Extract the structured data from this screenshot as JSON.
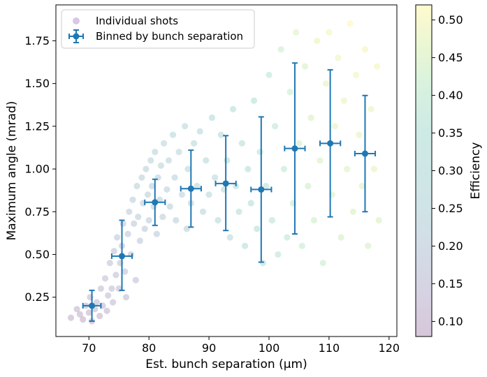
{
  "chart_data": [
    {
      "type": "scatter",
      "xlabel": "Est. bunch separation (µm)",
      "ylabel": "Maximum angle (mrad)",
      "xlim": [
        64.5,
        121.3
      ],
      "ylim": [
        0.02,
        1.96
      ],
      "xticks": [
        70,
        80,
        90,
        100,
        110,
        120
      ],
      "yticks": [
        0.25,
        0.5,
        0.75,
        1.0,
        1.25,
        1.5,
        1.75
      ],
      "ytick_labels": [
        "0.25",
        "0.50",
        "0.75",
        "1.00",
        "1.25",
        "1.50",
        "1.75"
      ],
      "grid": false,
      "legend": {
        "position": "top-left",
        "entries": [
          "Individual shots",
          "Binned by bunch separation"
        ]
      },
      "colors": {
        "binned": "#1f77b4",
        "axis": "#000000"
      },
      "series": [
        {
          "name": "Individual shots",
          "style": "scatter, viridis colormap by efficiency, alpha 0.2",
          "points": [
            [
              67.0,
              0.13,
              0.1
            ],
            [
              68.0,
              0.18,
              0.11
            ],
            [
              68.5,
              0.15,
              0.1
            ],
            [
              69.0,
              0.12,
              0.09
            ],
            [
              69.5,
              0.2,
              0.12
            ],
            [
              70.0,
              0.16,
              0.11
            ],
            [
              70.2,
              0.25,
              0.13
            ],
            [
              70.5,
              0.11,
              0.09
            ],
            [
              71.0,
              0.18,
              0.12
            ],
            [
              71.3,
              0.22,
              0.13
            ],
            [
              71.8,
              0.14,
              0.1
            ],
            [
              72.0,
              0.3,
              0.14
            ],
            [
              72.3,
              0.2,
              0.12
            ],
            [
              72.7,
              0.36,
              0.15
            ],
            [
              73.0,
              0.17,
              0.11
            ],
            [
              73.2,
              0.26,
              0.14
            ],
            [
              73.5,
              0.45,
              0.16
            ],
            [
              73.8,
              0.3,
              0.15
            ],
            [
              74.0,
              0.22,
              0.13
            ],
            [
              74.2,
              0.52,
              0.17
            ],
            [
              74.5,
              0.38,
              0.15
            ],
            [
              74.7,
              0.6,
              0.18
            ],
            [
              75.0,
              0.3,
              0.14
            ],
            [
              75.2,
              0.45,
              0.16
            ],
            [
              75.5,
              0.55,
              0.17
            ],
            [
              75.7,
              0.68,
              0.19
            ],
            [
              76.0,
              0.4,
              0.16
            ],
            [
              76.2,
              0.25,
              0.13
            ],
            [
              76.5,
              0.62,
              0.18
            ],
            [
              76.7,
              0.75,
              0.2
            ],
            [
              77.0,
              0.5,
              0.17
            ],
            [
              77.3,
              0.82,
              0.21
            ],
            [
              77.5,
              0.68,
              0.19
            ],
            [
              77.8,
              0.35,
              0.15
            ],
            [
              78.0,
              0.9,
              0.22
            ],
            [
              78.2,
              0.72,
              0.2
            ],
            [
              78.5,
              0.58,
              0.18
            ],
            [
              78.8,
              0.95,
              0.23
            ],
            [
              79.0,
              0.8,
              0.21
            ],
            [
              79.3,
              0.65,
              0.19
            ],
            [
              79.5,
              1.0,
              0.23
            ],
            [
              79.8,
              0.85,
              0.22
            ],
            [
              80.0,
              0.7,
              0.2
            ],
            [
              80.3,
              1.05,
              0.24
            ],
            [
              80.5,
              0.9,
              0.22
            ],
            [
              80.8,
              0.78,
              0.21
            ],
            [
              81.0,
              1.1,
              0.24
            ],
            [
              81.3,
              0.62,
              0.19
            ],
            [
              81.5,
              0.95,
              0.23
            ],
            [
              81.8,
              0.82,
              0.22
            ],
            [
              82.0,
              1.02,
              0.24
            ],
            [
              82.3,
              0.72,
              0.21
            ],
            [
              82.5,
              1.15,
              0.25
            ],
            [
              83.0,
              0.88,
              0.23
            ],
            [
              83.3,
              1.05,
              0.24
            ],
            [
              83.5,
              0.78,
              0.22
            ],
            [
              84.0,
              1.2,
              0.26
            ],
            [
              84.3,
              0.95,
              0.24
            ],
            [
              84.5,
              0.7,
              0.22
            ],
            [
              85.0,
              1.1,
              0.25
            ],
            [
              85.5,
              0.85,
              0.24
            ],
            [
              86.0,
              1.25,
              0.27
            ],
            [
              86.3,
              0.65,
              0.23
            ],
            [
              86.5,
              1.0,
              0.25
            ],
            [
              87.0,
              0.8,
              0.25
            ],
            [
              87.5,
              1.15,
              0.26
            ],
            [
              88.0,
              0.9,
              0.26
            ],
            [
              88.5,
              1.22,
              0.27
            ],
            [
              89.0,
              0.75,
              0.26
            ],
            [
              89.5,
              1.05,
              0.27
            ],
            [
              90.0,
              0.85,
              0.28
            ],
            [
              90.5,
              1.3,
              0.29
            ],
            [
              91.0,
              0.95,
              0.28
            ],
            [
              91.5,
              0.7,
              0.28
            ],
            [
              92.0,
              1.2,
              0.29
            ],
            [
              92.5,
              0.88,
              0.3
            ],
            [
              93.0,
              1.05,
              0.3
            ],
            [
              93.5,
              0.6,
              0.3
            ],
            [
              94.0,
              1.35,
              0.31
            ],
            [
              94.5,
              0.9,
              0.31
            ],
            [
              95.0,
              0.75,
              0.31
            ],
            [
              95.5,
              1.15,
              0.32
            ],
            [
              96.0,
              0.55,
              0.33
            ],
            [
              96.5,
              1.0,
              0.33
            ],
            [
              97.0,
              0.8,
              0.33
            ],
            [
              97.5,
              1.4,
              0.35
            ],
            [
              98.0,
              0.65,
              0.34
            ],
            [
              98.5,
              1.1,
              0.35
            ],
            [
              99.0,
              0.45,
              0.36
            ],
            [
              99.5,
              0.9,
              0.36
            ],
            [
              100.0,
              1.55,
              0.39
            ],
            [
              100.5,
              0.7,
              0.37
            ],
            [
              101.0,
              1.25,
              0.39
            ],
            [
              101.5,
              0.5,
              0.38
            ],
            [
              102.0,
              1.7,
              0.42
            ],
            [
              102.5,
              1.0,
              0.4
            ],
            [
              103.0,
              0.6,
              0.39
            ],
            [
              103.5,
              1.45,
              0.42
            ],
            [
              104.0,
              0.8,
              0.41
            ],
            [
              104.5,
              1.8,
              0.46
            ],
            [
              105.0,
              1.15,
              0.43
            ],
            [
              105.5,
              0.55,
              0.41
            ],
            [
              106.0,
              1.6,
              0.45
            ],
            [
              106.5,
              0.9,
              0.43
            ],
            [
              107.0,
              1.3,
              0.45
            ],
            [
              107.5,
              0.7,
              0.43
            ],
            [
              108.0,
              1.75,
              0.48
            ],
            [
              108.5,
              1.05,
              0.45
            ],
            [
              109.0,
              0.45,
              0.42
            ],
            [
              109.5,
              1.5,
              0.47
            ],
            [
              110.0,
              1.8,
              0.5
            ],
            [
              110.5,
              0.85,
              0.45
            ],
            [
              111.0,
              1.25,
              0.47
            ],
            [
              111.5,
              1.65,
              0.49
            ],
            [
              112.0,
              0.6,
              0.44
            ],
            [
              112.5,
              1.4,
              0.48
            ],
            [
              113.0,
              1.0,
              0.46
            ],
            [
              113.5,
              1.85,
              0.52
            ],
            [
              114.0,
              0.75,
              0.45
            ],
            [
              114.5,
              1.55,
              0.49
            ],
            [
              115.0,
              1.2,
              0.47
            ],
            [
              115.5,
              0.9,
              0.46
            ],
            [
              116.0,
              1.7,
              0.5
            ],
            [
              116.5,
              0.55,
              0.44
            ],
            [
              117.0,
              1.35,
              0.48
            ],
            [
              117.5,
              1.0,
              0.47
            ],
            [
              118.0,
              1.6,
              0.5
            ],
            [
              118.3,
              0.7,
              0.45
            ]
          ]
        },
        {
          "name": "Binned by bunch separation",
          "style": "errorbar",
          "points": [
            {
              "x": 70.5,
              "y": 0.2,
              "xerr": 1.5,
              "yerr_low": 0.09,
              "yerr_high": 0.09
            },
            {
              "x": 75.5,
              "y": 0.49,
              "xerr": 1.7,
              "yerr_low": 0.2,
              "yerr_high": 0.21
            },
            {
              "x": 81.0,
              "y": 0.805,
              "xerr": 1.7,
              "yerr_low": 0.135,
              "yerr_high": 0.135
            },
            {
              "x": 87.0,
              "y": 0.885,
              "xerr": 1.7,
              "yerr_low": 0.225,
              "yerr_high": 0.225
            },
            {
              "x": 92.8,
              "y": 0.915,
              "xerr": 1.7,
              "yerr_low": 0.275,
              "yerr_high": 0.28
            },
            {
              "x": 98.7,
              "y": 0.88,
              "xerr": 1.7,
              "yerr_low": 0.425,
              "yerr_high": 0.425
            },
            {
              "x": 104.3,
              "y": 1.12,
              "xerr": 1.7,
              "yerr_low": 0.5,
              "yerr_high": 0.5
            },
            {
              "x": 110.2,
              "y": 1.15,
              "xerr": 1.7,
              "yerr_low": 0.43,
              "yerr_high": 0.43
            },
            {
              "x": 116.0,
              "y": 1.09,
              "xerr": 1.7,
              "yerr_low": 0.34,
              "yerr_high": 0.34
            }
          ]
        }
      ]
    },
    {
      "type": "colorbar",
      "label": "Efficiency",
      "colormap": "viridis",
      "alpha": 0.2,
      "range": [
        0.08,
        0.52
      ],
      "ticks": [
        0.1,
        0.15,
        0.2,
        0.25,
        0.3,
        0.35,
        0.4,
        0.45,
        0.5
      ],
      "tick_labels": [
        "0.10",
        "0.15",
        "0.20",
        "0.25",
        "0.30",
        "0.35",
        "0.40",
        "0.45",
        "0.50"
      ]
    }
  ]
}
